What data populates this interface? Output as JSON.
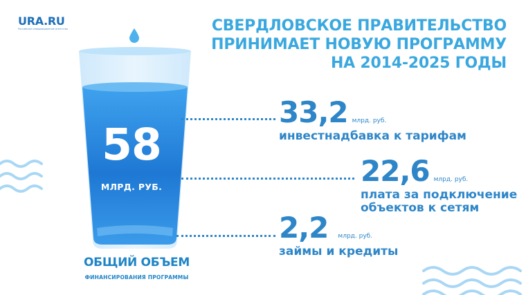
{
  "logo": {
    "name": "URA.RU",
    "tagline": "Российское информационное агентство"
  },
  "headline": [
    "СВЕРДЛОВСКОЕ ПРАВИТЕЛЬСТВО",
    "ПРИНИМАЕТ НОВУЮ ПРОГРАММУ",
    "НА 2014-2025 ГОДЫ"
  ],
  "total": {
    "value": "58",
    "unit": "МЛРД. РУБ.",
    "label": "ОБЩИЙ ОБЪЕМ",
    "sublabel": "ФИНАНСИРОВАНИЯ ПРОГРАММЫ"
  },
  "items": [
    {
      "value": "33,2",
      "unit": "млрд. руб.",
      "desc": [
        "инвестнадбавка к тарифам"
      ]
    },
    {
      "value": "22,6",
      "unit": "млрд. руб.",
      "desc": [
        "плата за подключение",
        "объектов к сетям"
      ]
    },
    {
      "value": "2,2",
      "unit": "млрд. руб.",
      "desc": [
        "займы и кредиты"
      ]
    }
  ],
  "colors": {
    "brand": "#1d6fb8",
    "headline": "#3aa8df",
    "accent": "#2e86c8",
    "water_dark": "#1e78d4",
    "water_light": "#3fa2ee",
    "wave": "#9fd2f3"
  }
}
